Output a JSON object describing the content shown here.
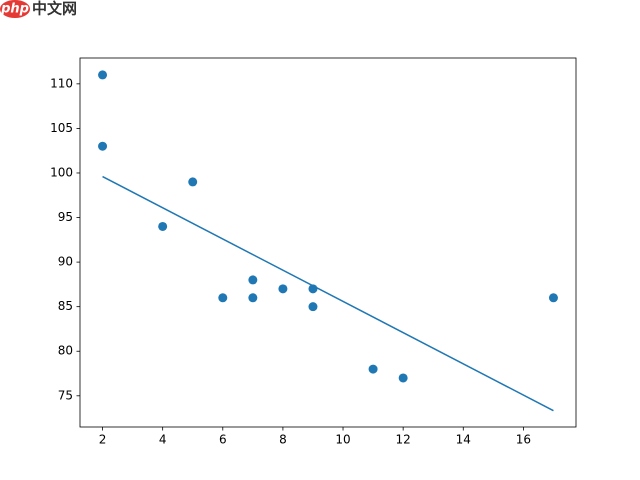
{
  "watermark": {
    "logo": "php",
    "text": "中文网"
  },
  "chart_data": {
    "type": "scatter",
    "xlim": [
      1.25,
      17.75
    ],
    "ylim": [
      71.5,
      112.9
    ],
    "xticks": [
      2,
      4,
      6,
      8,
      10,
      12,
      14,
      16
    ],
    "yticks": [
      75,
      80,
      85,
      90,
      95,
      100,
      105,
      110
    ],
    "series": [
      {
        "type": "scatter",
        "color": "#1f77b4",
        "x": [
          5,
          7,
          8,
          7,
          2,
          17,
          2,
          9,
          4,
          11,
          12,
          9,
          6
        ],
        "values": [
          99,
          86,
          87,
          88,
          111,
          86,
          103,
          87,
          94,
          78,
          77,
          85,
          86
        ]
      },
      {
        "type": "line",
        "color": "#1f77b4",
        "x": [
          2,
          17
        ],
        "values": [
          99.6,
          73.33
        ]
      }
    ]
  }
}
